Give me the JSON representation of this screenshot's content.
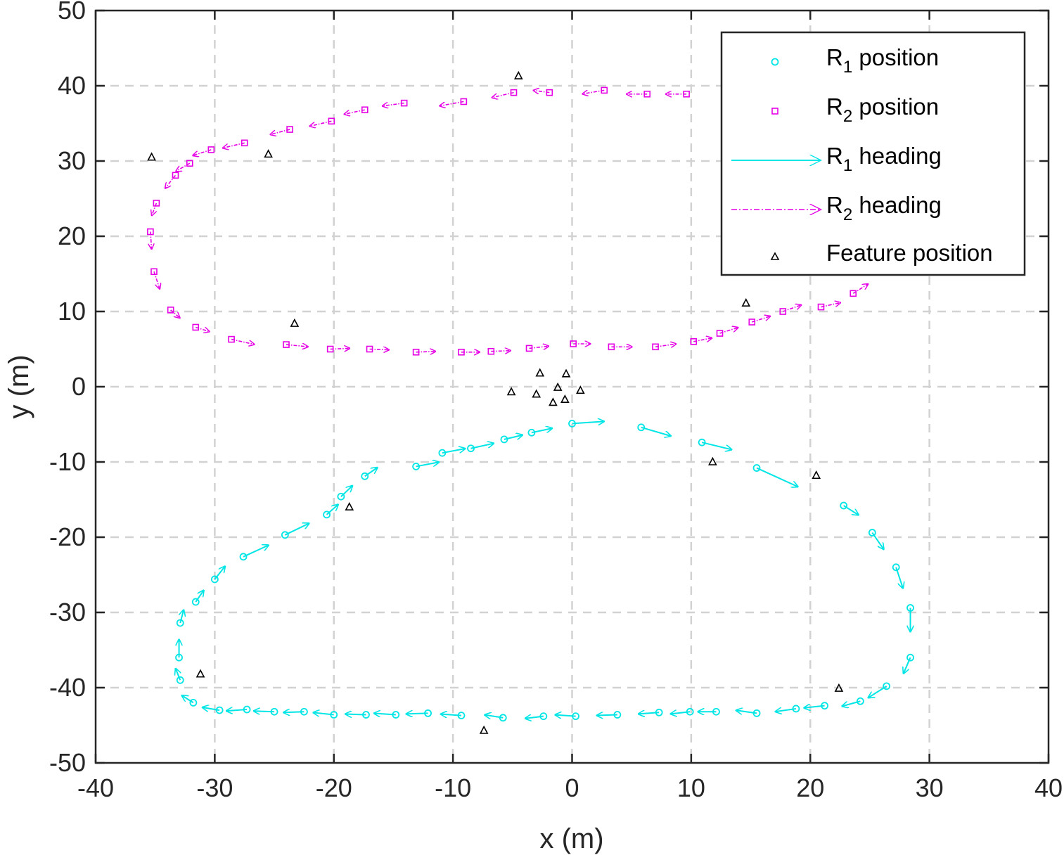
{
  "chart_data": {
    "type": "scatter",
    "title": "",
    "xlabel": "x (m)",
    "ylabel": "y (m)",
    "xlim": [
      -40,
      40
    ],
    "ylim": [
      -50,
      50
    ],
    "xticks": [
      -40,
      -30,
      -20,
      -10,
      0,
      10,
      20,
      30,
      40
    ],
    "yticks": [
      -50,
      -40,
      -30,
      -20,
      -10,
      0,
      10,
      20,
      30,
      40,
      50
    ],
    "xtick_labels": [
      "-40",
      "-30",
      "-20",
      "-10",
      "0",
      "10",
      "20",
      "30",
      "40"
    ],
    "ytick_labels": [
      "-50",
      "-40",
      "-30",
      "-20",
      "-10",
      "0",
      "10",
      "20",
      "30",
      "40",
      "50"
    ],
    "grid": true,
    "legend_placement": "top-right",
    "legend": [
      {
        "base": "R",
        "sub": "1",
        "text": " position",
        "series": "r1_position",
        "style": "cyan-circle"
      },
      {
        "base": "R",
        "sub": "2",
        "text": " position",
        "series": "r2_position",
        "style": "magenta-square"
      },
      {
        "base": "R",
        "sub": "1",
        "text": " heading",
        "series": "r1_heading",
        "style": "cyan-arrow"
      },
      {
        "base": "R",
        "sub": "2",
        "text": " heading",
        "series": "r2_heading",
        "style": "magenta-dashdot-arrow"
      },
      {
        "base": "",
        "sub": "",
        "text": "Feature position",
        "series": "features",
        "style": "black-triangle"
      }
    ],
    "colors": {
      "r1": "#00e5e5",
      "r2": "#e500e5",
      "feature": "#000000",
      "axis": "#262626",
      "grid": "#d2d2d2"
    },
    "series": [
      {
        "key": "r1",
        "points": [
          {
            "x": 0,
            "y": -4.9,
            "dx": 2.8,
            "dy": 0.3
          },
          {
            "x": 5.8,
            "y": -5.4,
            "dx": 2.6,
            "dy": -1.2
          },
          {
            "x": 10.9,
            "y": -7.4,
            "dx": 2.6,
            "dy": -1.0
          },
          {
            "x": 15.5,
            "y": -10.8,
            "dx": 3.6,
            "dy": -2.6
          },
          {
            "x": 22.8,
            "y": -15.8,
            "dx": 1.3,
            "dy": -1.3
          },
          {
            "x": 25.2,
            "y": -19.4,
            "dx": 1.0,
            "dy": -2.3
          },
          {
            "x": 27.2,
            "y": -24.0,
            "dx": 0.6,
            "dy": -2.9
          },
          {
            "x": 28.4,
            "y": -29.4,
            "dx": 0.0,
            "dy": -3.3
          },
          {
            "x": 28.4,
            "y": -36.0,
            "dx": -0.6,
            "dy": -2.2
          },
          {
            "x": 26.4,
            "y": -39.8,
            "dx": -1.6,
            "dy": -1.6
          },
          {
            "x": 24.2,
            "y": -41.8,
            "dx": -1.6,
            "dy": -0.7
          },
          {
            "x": 21.2,
            "y": -42.4,
            "dx": -1.8,
            "dy": -0.3
          },
          {
            "x": 18.8,
            "y": -42.8,
            "dx": -1.8,
            "dy": -0.4
          },
          {
            "x": 15.5,
            "y": -43.4,
            "dx": -1.8,
            "dy": 0.4
          },
          {
            "x": 12.1,
            "y": -43.2,
            "dx": -1.6,
            "dy": 0.0
          },
          {
            "x": 9.9,
            "y": -43.2,
            "dx": -1.7,
            "dy": -0.3
          },
          {
            "x": 7.3,
            "y": -43.3,
            "dx": -1.8,
            "dy": -0.2
          },
          {
            "x": 3.8,
            "y": -43.6,
            "dx": -1.8,
            "dy": -0.1
          },
          {
            "x": 0.3,
            "y": -43.8,
            "dx": -1.8,
            "dy": 0.2
          },
          {
            "x": -2.4,
            "y": -43.8,
            "dx": -1.6,
            "dy": -0.3
          },
          {
            "x": -5.8,
            "y": -44.0,
            "dx": -1.6,
            "dy": 0.4
          },
          {
            "x": -9.3,
            "y": -43.7,
            "dx": -1.8,
            "dy": 0.2
          },
          {
            "x": -12.1,
            "y": -43.4,
            "dx": -1.9,
            "dy": -0.1
          },
          {
            "x": -14.8,
            "y": -43.6,
            "dx": -1.9,
            "dy": 0.2
          },
          {
            "x": -17.3,
            "y": -43.6,
            "dx": -1.8,
            "dy": 0.1
          },
          {
            "x": -20.0,
            "y": -43.6,
            "dx": -1.8,
            "dy": 0.3
          },
          {
            "x": -22.5,
            "y": -43.2,
            "dx": -1.8,
            "dy": -0.1
          },
          {
            "x": -25.0,
            "y": -43.2,
            "dx": -1.8,
            "dy": 0.1
          },
          {
            "x": -27.3,
            "y": -42.9,
            "dx": -1.8,
            "dy": -0.2
          },
          {
            "x": -29.6,
            "y": -43.0,
            "dx": -1.5,
            "dy": 0.4
          },
          {
            "x": -31.8,
            "y": -42.0,
            "dx": -1.0,
            "dy": 1.0
          },
          {
            "x": -32.9,
            "y": -39.0,
            "dx": -0.4,
            "dy": 1.6
          },
          {
            "x": -33.0,
            "y": -36.0,
            "dx": 0.0,
            "dy": 2.5
          },
          {
            "x": -32.9,
            "y": -31.4,
            "dx": 0.3,
            "dy": 1.8
          },
          {
            "x": -31.6,
            "y": -28.6,
            "dx": 0.7,
            "dy": 1.6
          },
          {
            "x": -30.0,
            "y": -25.6,
            "dx": 0.9,
            "dy": 1.8
          },
          {
            "x": -27.6,
            "y": -22.6,
            "dx": 2.2,
            "dy": 1.6
          },
          {
            "x": -24.1,
            "y": -19.7,
            "dx": 2.1,
            "dy": 1.6
          },
          {
            "x": -20.6,
            "y": -17.0,
            "dx": 1.0,
            "dy": 1.4
          },
          {
            "x": -19.4,
            "y": -14.6,
            "dx": 1.0,
            "dy": 1.5
          },
          {
            "x": -17.4,
            "y": -11.9,
            "dx": 1.1,
            "dy": 1.2
          },
          {
            "x": -13.1,
            "y": -10.6,
            "dx": 2.0,
            "dy": 0.6
          },
          {
            "x": -10.9,
            "y": -8.8,
            "dx": 2.0,
            "dy": 0.6
          },
          {
            "x": -8.5,
            "y": -8.2,
            "dx": 2.0,
            "dy": 0.7
          },
          {
            "x": -5.7,
            "y": -7.0,
            "dx": 1.6,
            "dy": 0.6
          },
          {
            "x": -3.4,
            "y": -6.1,
            "dx": 1.8,
            "dy": 0.6
          }
        ]
      },
      {
        "key": "r2",
        "points": [
          {
            "x": 23.6,
            "y": 12.4,
            "dx": 1.3,
            "dy": 1.3
          },
          {
            "x": 20.9,
            "y": 10.6,
            "dx": 1.7,
            "dy": 0.6
          },
          {
            "x": 17.7,
            "y": 10.0,
            "dx": 1.6,
            "dy": 0.9
          },
          {
            "x": 15.1,
            "y": 8.6,
            "dx": 1.6,
            "dy": 0.8
          },
          {
            "x": 12.4,
            "y": 7.1,
            "dx": 1.6,
            "dy": 0.8
          },
          {
            "x": 10.2,
            "y": 6.0,
            "dx": 1.6,
            "dy": 0.5
          },
          {
            "x": 7.0,
            "y": 5.3,
            "dx": 1.8,
            "dy": 0.4
          },
          {
            "x": 3.3,
            "y": 5.3,
            "dx": 1.8,
            "dy": 0.0
          },
          {
            "x": 0.1,
            "y": 5.7,
            "dx": 1.5,
            "dy": 0.0
          },
          {
            "x": -3.6,
            "y": 5.1,
            "dx": 1.7,
            "dy": 0.3
          },
          {
            "x": -6.8,
            "y": 4.7,
            "dx": 1.7,
            "dy": 0.1
          },
          {
            "x": -9.3,
            "y": 4.6,
            "dx": 1.6,
            "dy": 0.0
          },
          {
            "x": -13.1,
            "y": 4.6,
            "dx": 1.7,
            "dy": 0.1
          },
          {
            "x": -17.0,
            "y": 5.0,
            "dx": 1.7,
            "dy": -0.1
          },
          {
            "x": -20.3,
            "y": 5.0,
            "dx": 1.7,
            "dy": 0.1
          },
          {
            "x": -24.0,
            "y": 5.6,
            "dx": 1.9,
            "dy": -0.3
          },
          {
            "x": -28.6,
            "y": 6.3,
            "dx": 2.0,
            "dy": -0.7
          },
          {
            "x": -31.6,
            "y": 7.9,
            "dx": 1.2,
            "dy": -0.6
          },
          {
            "x": -33.7,
            "y": 10.2,
            "dx": 0.8,
            "dy": -1.1
          },
          {
            "x": -35.1,
            "y": 15.3,
            "dx": 0.5,
            "dy": -2.4
          },
          {
            "x": -35.4,
            "y": 20.6,
            "dx": 0.1,
            "dy": -2.4
          },
          {
            "x": -34.9,
            "y": 24.4,
            "dx": -0.4,
            "dy": -1.7
          },
          {
            "x": -33.3,
            "y": 28.1,
            "dx": -0.9,
            "dy": -1.8
          },
          {
            "x": -32.1,
            "y": 29.7,
            "dx": -1.2,
            "dy": -1.1
          },
          {
            "x": -30.3,
            "y": 31.5,
            "dx": -1.6,
            "dy": -0.8
          },
          {
            "x": -27.5,
            "y": 32.4,
            "dx": -1.9,
            "dy": -0.7
          },
          {
            "x": -23.7,
            "y": 34.2,
            "dx": -1.7,
            "dy": -0.7
          },
          {
            "x": -20.2,
            "y": 35.3,
            "dx": -1.9,
            "dy": -0.7
          },
          {
            "x": -17.4,
            "y": 36.8,
            "dx": -1.8,
            "dy": -0.6
          },
          {
            "x": -14.1,
            "y": 37.7,
            "dx": -1.9,
            "dy": -0.4
          },
          {
            "x": -9.1,
            "y": 37.9,
            "dx": -2.1,
            "dy": -0.6
          },
          {
            "x": -4.9,
            "y": 39.1,
            "dx": -1.9,
            "dy": -0.7
          },
          {
            "x": -1.9,
            "y": 39.1,
            "dx": -1.4,
            "dy": 0.3
          },
          {
            "x": 2.7,
            "y": 39.4,
            "dx": -1.9,
            "dy": -0.5
          },
          {
            "x": 6.3,
            "y": 38.9,
            "dx": -1.8,
            "dy": 0.0
          },
          {
            "x": 9.6,
            "y": 38.9,
            "dx": -1.8,
            "dy": 0.0
          }
        ]
      }
    ],
    "features": [
      {
        "x": -4.5,
        "y": 41.3
      },
      {
        "x": -35.3,
        "y": 30.5
      },
      {
        "x": -25.5,
        "y": 30.9
      },
      {
        "x": -23.3,
        "y": 8.4
      },
      {
        "x": 14.6,
        "y": 11.1
      },
      {
        "x": -2.7,
        "y": 1.8
      },
      {
        "x": -0.5,
        "y": 1.7
      },
      {
        "x": -5.1,
        "y": -0.7
      },
      {
        "x": -3.0,
        "y": -1.0
      },
      {
        "x": -1.2,
        "y": -0.1
      },
      {
        "x": 0.7,
        "y": -0.5
      },
      {
        "x": -1.6,
        "y": -2.1
      },
      {
        "x": -0.6,
        "y": -1.7
      },
      {
        "x": 11.8,
        "y": -10.0
      },
      {
        "x": 20.5,
        "y": -11.8
      },
      {
        "x": -18.7,
        "y": -16.0
      },
      {
        "x": -31.2,
        "y": -38.2
      },
      {
        "x": 22.4,
        "y": -40.1
      },
      {
        "x": -7.4,
        "y": -45.7
      }
    ]
  }
}
